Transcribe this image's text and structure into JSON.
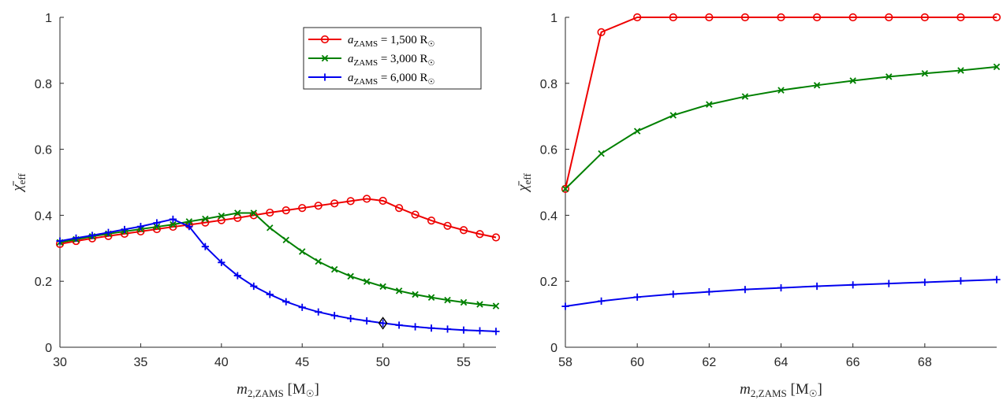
{
  "chart_data": [
    {
      "type": "line",
      "title": "",
      "xlabel": "m₂,ZAMS [M☉]",
      "ylabel": "χ̄eff",
      "xlim": [
        30,
        57
      ],
      "ylim": [
        0,
        1
      ],
      "xticks": [
        30,
        35,
        40,
        45,
        50,
        55
      ],
      "yticks": [
        0,
        0.2,
        0.4,
        0.6,
        0.8,
        1
      ],
      "ytick_labels": [
        "0",
        "0.2",
        "0.4",
        "0.6",
        "0.8",
        "1"
      ],
      "legend_position": "top-right",
      "x": [
        30,
        31,
        32,
        33,
        34,
        35,
        36,
        37,
        38,
        39,
        40,
        41,
        42,
        43,
        44,
        45,
        46,
        47,
        48,
        49,
        50,
        51,
        52,
        53,
        54,
        55,
        56,
        57
      ],
      "series": [
        {
          "name": "aZAMS = 1,500 R☉",
          "color": "#ee0000",
          "marker": "circle",
          "values": [
            0.313,
            0.322,
            0.33,
            0.337,
            0.344,
            0.351,
            0.358,
            0.365,
            0.371,
            0.378,
            0.385,
            0.392,
            0.4,
            0.408,
            0.415,
            0.422,
            0.429,
            0.436,
            0.443,
            0.45,
            0.444,
            0.422,
            0.402,
            0.384,
            0.368,
            0.355,
            0.343,
            0.333
          ]
        },
        {
          "name": "aZAMS = 3,000 R☉",
          "color": "#008000",
          "marker": "x",
          "values": [
            0.318,
            0.327,
            0.336,
            0.344,
            0.351,
            0.358,
            0.365,
            0.372,
            0.381,
            0.389,
            0.398,
            0.407,
            0.407,
            0.362,
            0.325,
            0.29,
            0.26,
            0.236,
            0.215,
            0.199,
            0.184,
            0.171,
            0.16,
            0.151,
            0.143,
            0.136,
            0.13,
            0.125
          ]
        },
        {
          "name": "aZAMS = 6,000 R☉",
          "color": "#0000ee",
          "marker": "plus",
          "values": [
            0.322,
            0.331,
            0.339,
            0.348,
            0.357,
            0.366,
            0.377,
            0.388,
            0.366,
            0.305,
            0.257,
            0.217,
            0.185,
            0.16,
            0.138,
            0.121,
            0.107,
            0.096,
            0.087,
            0.08,
            0.073,
            0.067,
            0.062,
            0.058,
            0.055,
            0.052,
            0.05,
            0.048
          ]
        }
      ],
      "annotation": {
        "type": "diamond",
        "x": 50,
        "y": 0.073
      }
    },
    {
      "type": "line",
      "title": "",
      "xlabel": "m₂,ZAMS [M☉]",
      "ylabel": "χ̄eff",
      "xlim": [
        58,
        70
      ],
      "ylim": [
        0,
        1
      ],
      "xticks": [
        58,
        60,
        62,
        64,
        66,
        68
      ],
      "yticks": [
        0,
        0.2,
        0.4,
        0.6,
        0.8,
        1
      ],
      "ytick_labels": [
        "0",
        "0.2",
        "0.4",
        "0.6",
        "0.8",
        "1"
      ],
      "x": [
        58,
        59,
        60,
        61,
        62,
        63,
        64,
        65,
        66,
        67,
        68,
        69,
        70
      ],
      "series": [
        {
          "name": "aZAMS = 1,500 R☉",
          "color": "#ee0000",
          "marker": "circle",
          "values": [
            0.48,
            0.955,
            1,
            1,
            1,
            1,
            1,
            1,
            1,
            1,
            1,
            1,
            1
          ]
        },
        {
          "name": "aZAMS = 3,000 R☉",
          "color": "#008000",
          "marker": "x",
          "values": [
            0.48,
            0.587,
            0.655,
            0.703,
            0.736,
            0.76,
            0.779,
            0.794,
            0.808,
            0.82,
            0.83,
            0.839,
            0.85
          ]
        },
        {
          "name": "aZAMS = 6,000 R☉",
          "color": "#0000ee",
          "marker": "plus",
          "values": [
            0.124,
            0.14,
            0.152,
            0.161,
            0.168,
            0.175,
            0.18,
            0.185,
            0.189,
            0.193,
            0.197,
            0.201,
            0.205
          ]
        }
      ]
    }
  ]
}
